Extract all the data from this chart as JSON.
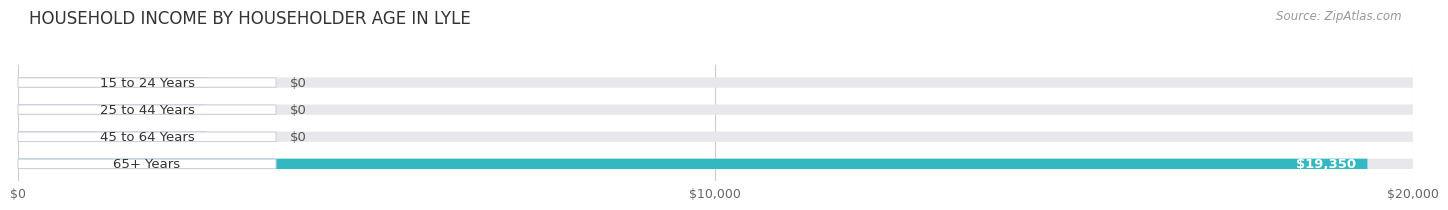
{
  "title": "HOUSEHOLD INCOME BY HOUSEHOLDER AGE IN LYLE",
  "source": "Source: ZipAtlas.com",
  "categories": [
    "15 to 24 Years",
    "25 to 44 Years",
    "45 to 64 Years",
    "65+ Years"
  ],
  "values": [
    0,
    0,
    0,
    19350
  ],
  "bar_colors": [
    "#f0a0a8",
    "#a8b8e8",
    "#c0a0cc",
    "#32b8c0"
  ],
  "bar_background": "#e8e8ec",
  "xmax": 20000,
  "xticks": [
    0,
    10000,
    20000
  ],
  "xtick_labels": [
    "$0",
    "$10,000",
    "$20,000"
  ],
  "value_labels": [
    "$0",
    "$0",
    "$0",
    "$19,350"
  ],
  "fig_bg": "#ffffff",
  "title_fontsize": 12,
  "source_fontsize": 8.5,
  "bar_height": 0.38,
  "label_fontsize": 9.5
}
